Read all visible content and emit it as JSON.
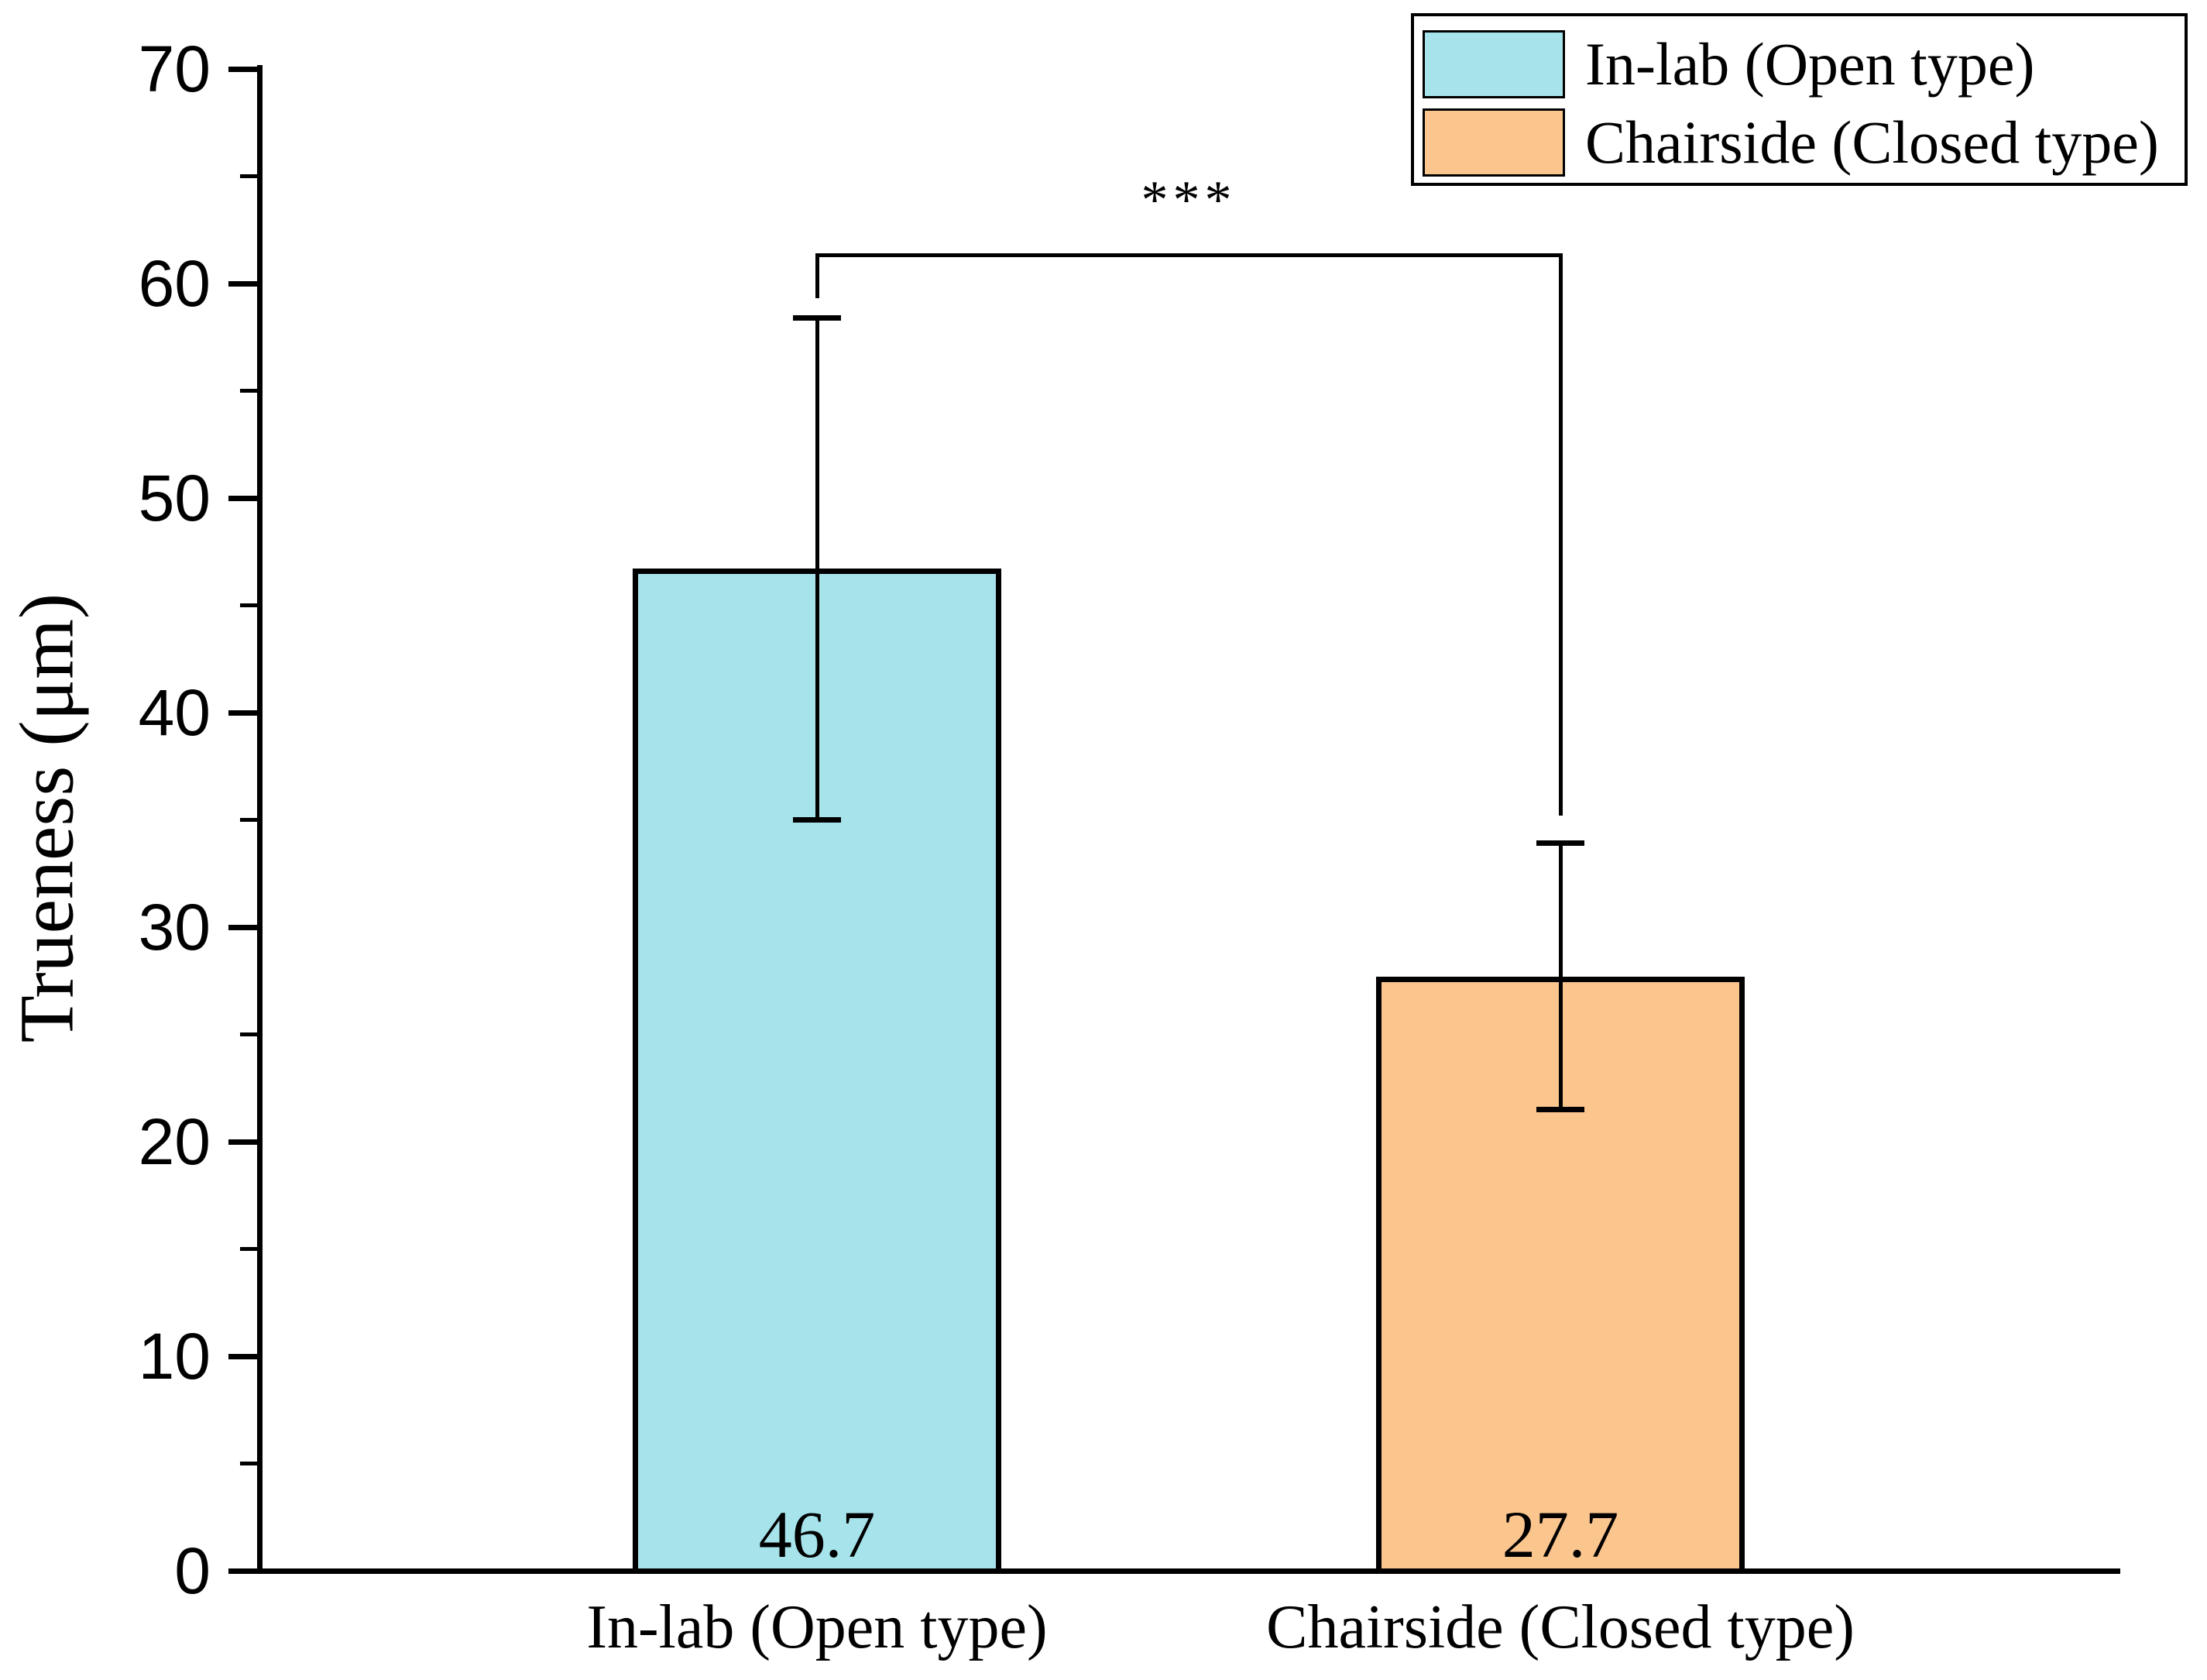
{
  "chart_data": {
    "type": "bar",
    "title": "",
    "xlabel": "",
    "ylabel": "Trueness (μm)",
    "ylim": [
      0,
      70
    ],
    "y_major_ticks": [
      0,
      10,
      20,
      30,
      40,
      50,
      60,
      70
    ],
    "y_minor_ticks": [
      5,
      15,
      25,
      35,
      45,
      55,
      65
    ],
    "grid": false,
    "categories": [
      "In-lab (Open type)",
      "Chairside (Closed type)"
    ],
    "bars": [
      {
        "category": "In-lab (Open type)",
        "value": 46.7,
        "value_label": "46.7",
        "error": 11.7,
        "fill_color": "#A6E3EB"
      },
      {
        "category": "Chairside (Closed type)",
        "value": 27.7,
        "value_label": "27.7",
        "error": 6.2,
        "fill_color": "#FBC58E"
      }
    ],
    "legend": {
      "position": "top-right",
      "entries": [
        {
          "label": "In-lab (Open type)",
          "color": "#A6E3EB"
        },
        {
          "label": "Chairside (Closed type)",
          "color": "#FBC58E"
        }
      ]
    },
    "significance": {
      "label": "***",
      "bracket_y": 61.3,
      "left_drop_to": 59.3,
      "right_drop_to": 35.2
    },
    "axis_color": "#000000",
    "text_color": "#000000",
    "background": "#ffffff"
  }
}
